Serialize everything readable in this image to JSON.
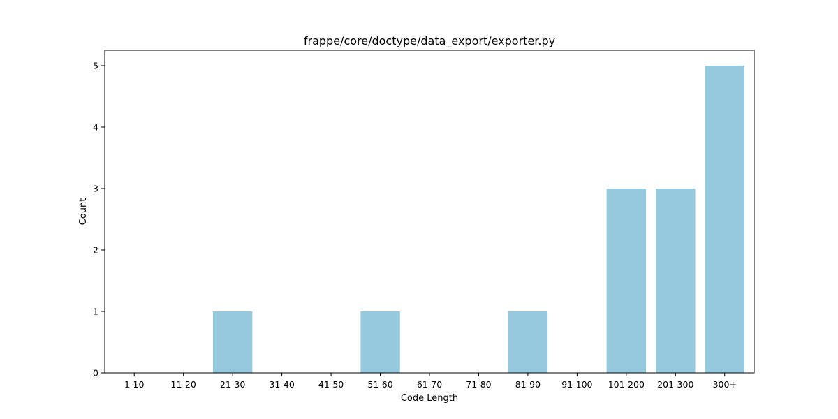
{
  "chart_data": {
    "type": "bar",
    "title": "frappe/core/doctype/data_export/exporter.py",
    "xlabel": "Code Length",
    "ylabel": "Count",
    "categories": [
      "1-10",
      "11-20",
      "21-30",
      "31-40",
      "41-50",
      "51-60",
      "61-70",
      "71-80",
      "81-90",
      "91-100",
      "101-200",
      "201-300",
      "300+"
    ],
    "values": [
      0,
      0,
      1,
      0,
      0,
      1,
      0,
      0,
      1,
      0,
      3,
      3,
      5
    ],
    "yticks": [
      "0",
      "1",
      "2",
      "3",
      "4",
      "5"
    ],
    "ylim": [
      0,
      5.25
    ],
    "bar_color": "#95c9de",
    "grid": false,
    "legend": false
  }
}
